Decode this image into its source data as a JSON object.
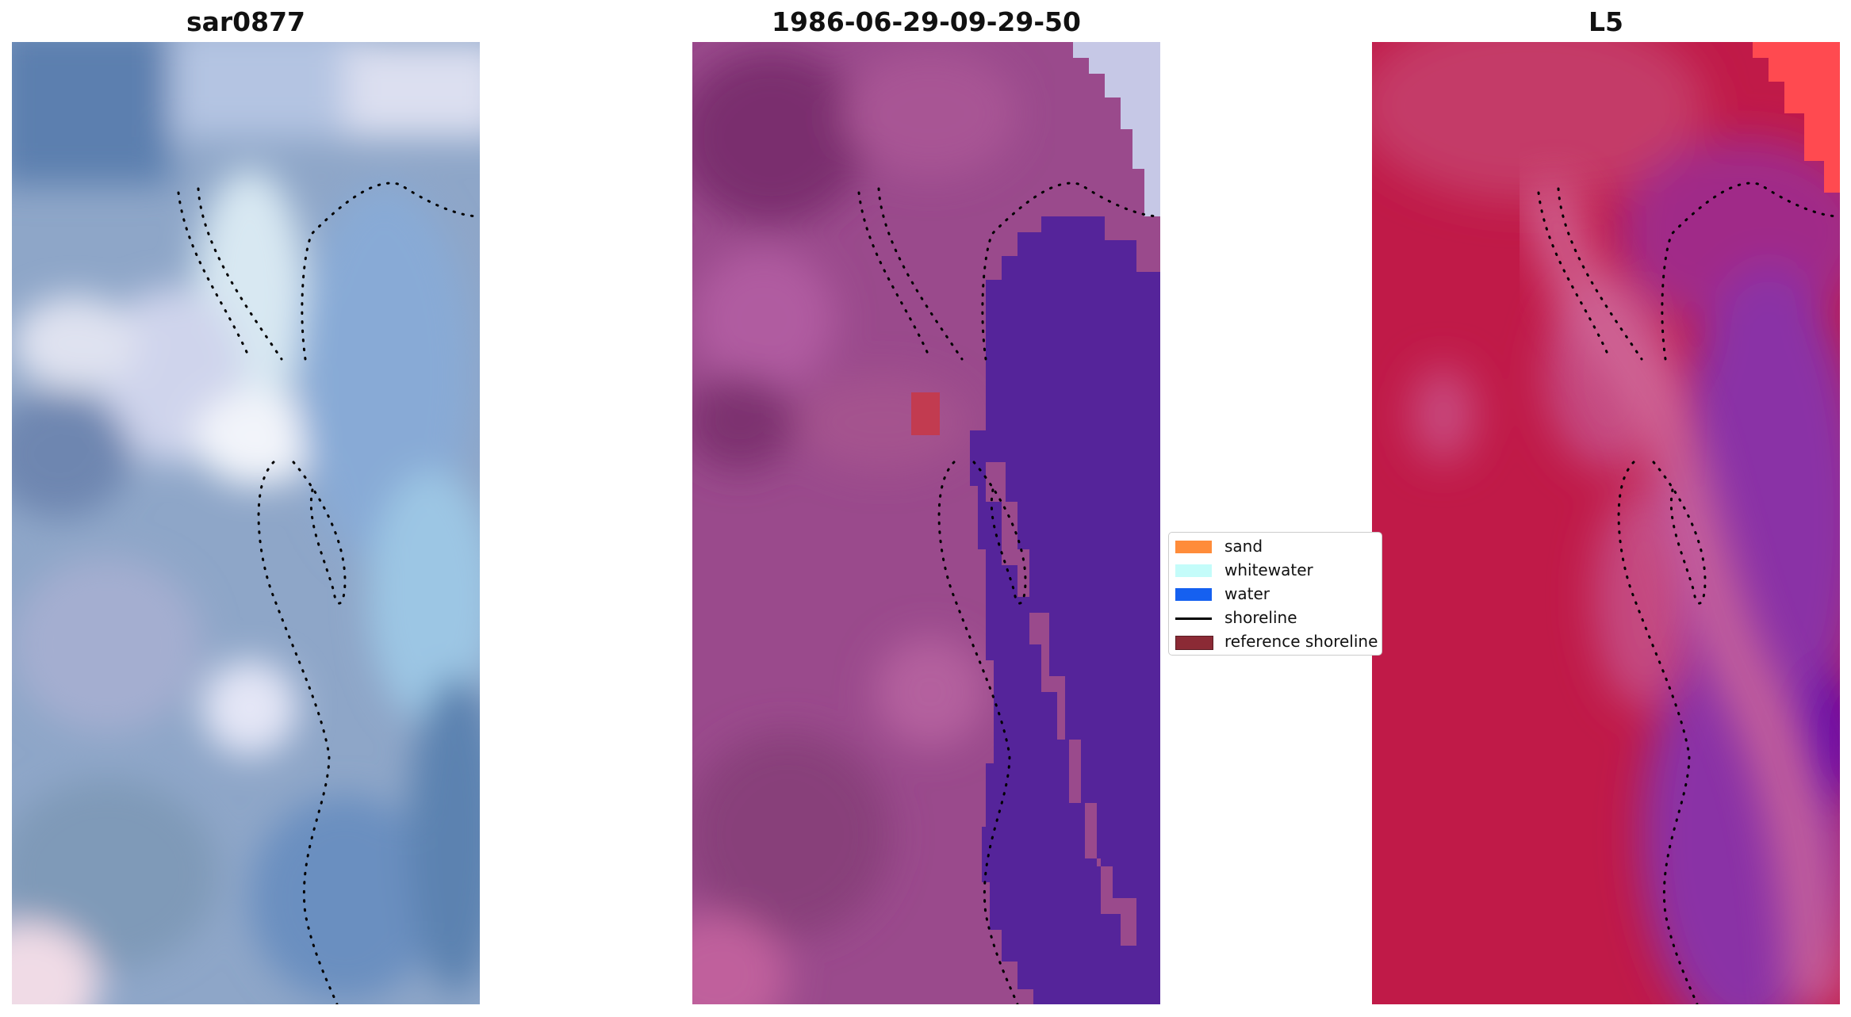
{
  "panels": [
    {
      "title": "sar0877"
    },
    {
      "title": "1986-06-29-09-29-50"
    },
    {
      "title": "L5"
    }
  ],
  "legend": {
    "items": [
      {
        "label": "sand",
        "color": "#ff8c3a",
        "kind": "patch"
      },
      {
        "label": "whitewater",
        "color": "#c4fcfa",
        "kind": "patch"
      },
      {
        "label": "water",
        "color": "#1560f0",
        "kind": "patch"
      },
      {
        "label": "shoreline",
        "color": "#000000",
        "kind": "line"
      },
      {
        "label": "reference shoreline",
        "color": "#8b2a35",
        "kind": "patch"
      }
    ]
  },
  "colors": {
    "rgb_base": "#8aa2c8",
    "classified_land": "#9a4a8c",
    "classified_water": "#55249a",
    "classified_sand": "#c23b50",
    "index_land": "#c01a48",
    "index_water": "#7d2aa0",
    "index_bright": "#ff4a50"
  }
}
